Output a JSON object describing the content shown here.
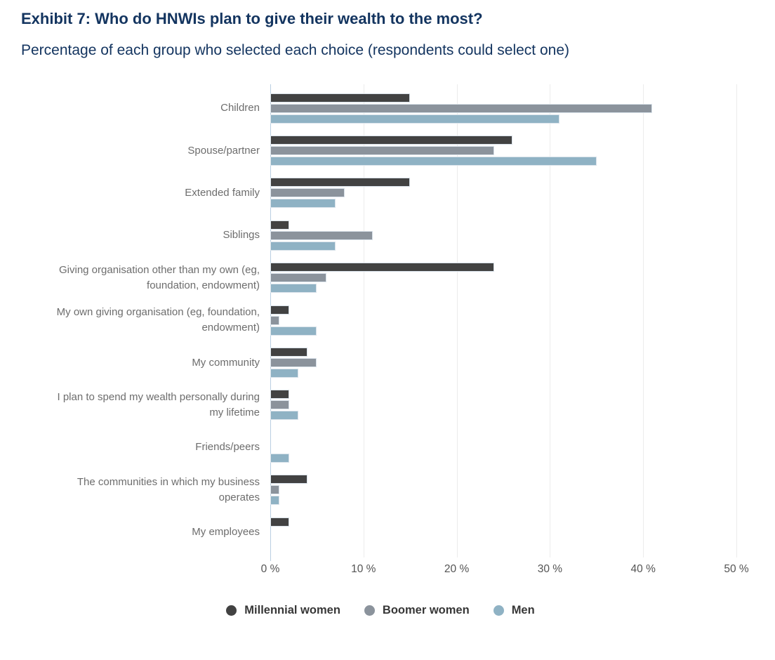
{
  "header": {
    "title": "Exhibit 7: Who do HNWIs plan to give their wealth to the most?",
    "subtitle": "Percentage of each group who selected each choice (respondents could select one)"
  },
  "colors": {
    "title_navy": "#143560",
    "category_label": "#6d6d6d",
    "tick_label": "#545454",
    "gridline": "#ececec",
    "zero_axis_line": "#b9cfe2",
    "bar_border": "#d9e2ea",
    "background": "#ffffff"
  },
  "chart_data": {
    "type": "bar",
    "orientation": "horizontal",
    "title": "Exhibit 7: Who do HNWIs plan to give their wealth to the most?",
    "subtitle": "Percentage of each group who selected each choice (respondents could select one)",
    "xlabel": "",
    "ylabel": "",
    "xlim": [
      0,
      50
    ],
    "grid": true,
    "legend_position": "bottom",
    "unit": "%",
    "categories": [
      "Children",
      "Spouse/partner",
      "Extended family",
      "Siblings",
      "Giving organisation other than my own (eg, foundation, endowment)",
      "My own giving organisation (eg, foundation, endowment)",
      "My community",
      "I plan to spend my wealth personally during my lifetime",
      "Friends/peers",
      "The communities in which my business operates",
      "My employees"
    ],
    "series": [
      {
        "name": "Millennial women",
        "color": "#424242",
        "values": [
          15,
          26,
          15,
          2,
          24,
          2,
          4,
          2,
          0,
          4,
          2
        ]
      },
      {
        "name": "Boomer women",
        "color": "#8b939c",
        "values": [
          41,
          24,
          8,
          11,
          6,
          1,
          5,
          2,
          0,
          1,
          0
        ]
      },
      {
        "name": "Men",
        "color": "#8fb2c4",
        "values": [
          31,
          35,
          7,
          7,
          5,
          5,
          3,
          3,
          2,
          1,
          0
        ]
      }
    ],
    "x_ticks": [
      0,
      10,
      20,
      30,
      40,
      50
    ],
    "x_tick_labels": [
      "0 %",
      "10 %",
      "20 %",
      "30 %",
      "40 %",
      "50 %"
    ]
  }
}
